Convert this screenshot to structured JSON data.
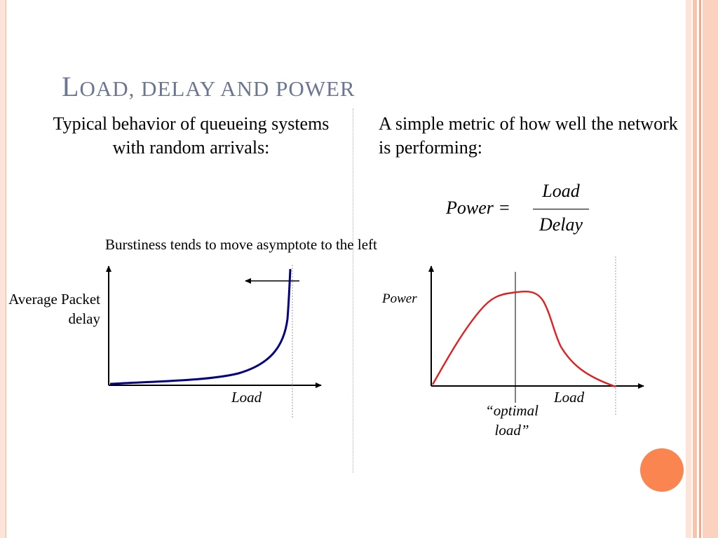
{
  "slide": {
    "title_cap": "L",
    "title_rest": "OAD, DELAY AND POWER",
    "left_text": "Typical behavior of queueing systems with random arrivals:",
    "right_text": "A simple metric of how well the network is performing:",
    "formula": {
      "lhs": "Power =",
      "numerator": "Load",
      "denominator": "Delay"
    }
  },
  "delay_chart": {
    "annotation": "Burstiness tends to move asymptote to the left",
    "ylabel": "Average Packet delay",
    "xlabel": "Load",
    "curve_color": "#000080"
  },
  "power_chart": {
    "ylabel": "Power",
    "xlabel": "Load",
    "optimal_label": "“optimal load”",
    "curve_color": "#e02020"
  },
  "colors": {
    "title": "#6b7690",
    "accent_dot": "#fb8550",
    "frame": "#f7b9a0"
  }
}
